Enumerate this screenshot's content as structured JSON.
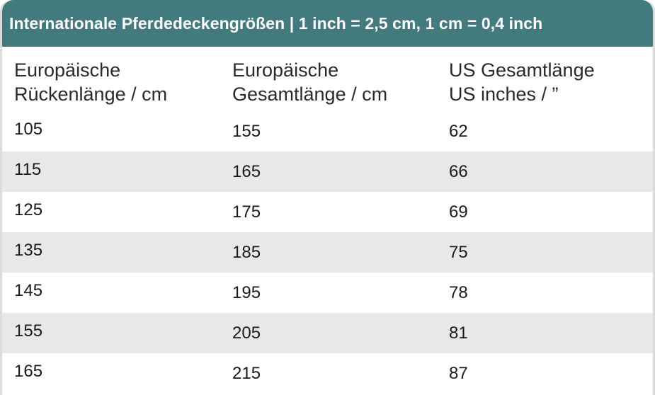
{
  "title": "Internationale Pferdedeckengrößen | 1 inch = 2,5 cm, 1 cm = 0,4 inch",
  "colors": {
    "title_bar": "#427a7e",
    "row_alt": "#e8e8e8"
  },
  "table": {
    "headers": [
      "Europäische\nRückenlänge / cm",
      "Europäische\nGesamtlänge / cm",
      "US Gesamtlänge\nUS inches / ”"
    ],
    "rows": [
      [
        "105",
        "155",
        "62"
      ],
      [
        "115",
        "165",
        "66"
      ],
      [
        "125",
        "175",
        "69"
      ],
      [
        "135",
        "185",
        "75"
      ],
      [
        "145",
        "195",
        "78"
      ],
      [
        "155",
        "205",
        "81"
      ],
      [
        "165",
        "215",
        "87"
      ]
    ]
  }
}
